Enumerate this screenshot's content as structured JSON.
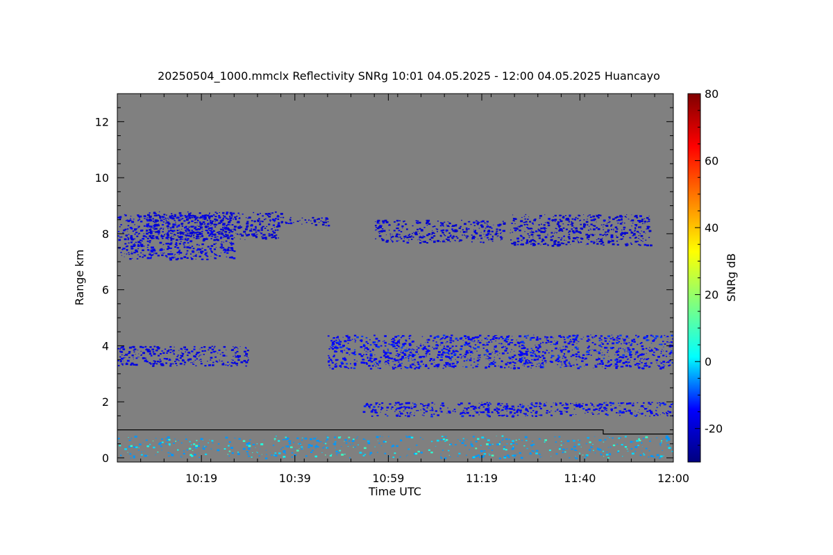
{
  "chart_data": {
    "type": "heatmap",
    "title": "20250504_1000.mmclx Reflectivity SNRg   10:01 04.05.2025 - 12:00 04.05.2025 Huancayo",
    "xlabel": "Time UTC",
    "ylabel": "Range km",
    "colorbar_label": "SNRg dB",
    "x_ticks": [
      "10:19",
      "10:39",
      "10:59",
      "11:19",
      "11:40",
      "12:00"
    ],
    "x_tick_minutes": [
      18,
      38,
      58,
      78,
      99,
      119
    ],
    "x_range_minutes": [
      0,
      119
    ],
    "y_ticks": [
      0,
      2,
      4,
      6,
      8,
      10,
      12
    ],
    "y_range_km": [
      -0.15,
      13
    ],
    "colorbar_ticks": [
      -20,
      0,
      20,
      40,
      60,
      80
    ],
    "colorbar_range_db": [
      -30,
      80
    ],
    "colormap": [
      "#00007f",
      "#0000ff",
      "#00ffff",
      "#7fff7f",
      "#ffff00",
      "#ff7f00",
      "#ff0000",
      "#7f0000"
    ],
    "background_color": "#808080",
    "echo_regions": [
      {
        "name": "cirrus-layer-main",
        "t0": 0,
        "t1": 25,
        "z0": 7.1,
        "z1": 8.7,
        "snr_db": -18
      },
      {
        "name": "cirrus-streak-1",
        "t0": 6,
        "t1": 35,
        "z0": 7.8,
        "z1": 8.8,
        "snr_db": -20
      },
      {
        "name": "cirrus-streak-2",
        "t0": 35,
        "t1": 45,
        "z0": 8.3,
        "z1": 8.6,
        "snr_db": -21
      },
      {
        "name": "cirrus-streak-3",
        "t0": 55,
        "t1": 83,
        "z0": 7.7,
        "z1": 8.5,
        "snr_db": -20
      },
      {
        "name": "cirrus-streak-4",
        "t0": 84,
        "t1": 114,
        "z0": 7.6,
        "z1": 8.7,
        "snr_db": -20
      },
      {
        "name": "mid-layer-left",
        "t0": 0,
        "t1": 28,
        "z0": 3.3,
        "z1": 4.0,
        "snr_db": -18
      },
      {
        "name": "mid-layer-clouds",
        "t0": 45,
        "t1": 119,
        "z0": 3.2,
        "z1": 4.4,
        "snr_db": -15
      },
      {
        "name": "low-layer",
        "t0": 52,
        "t1": 119,
        "z0": 1.5,
        "z1": 2.0,
        "snr_db": -16
      },
      {
        "name": "near-ground-clutter",
        "t0": 0,
        "t1": 119,
        "z0": 0.0,
        "z1": 0.8,
        "snr_db": -5
      }
    ],
    "boundary_line": {
      "time_minutes": [
        0,
        104,
        104,
        119
      ],
      "range_km": [
        1.0,
        1.0,
        0.85,
        0.85
      ]
    },
    "grid": false,
    "colorbar_placement": "right"
  }
}
